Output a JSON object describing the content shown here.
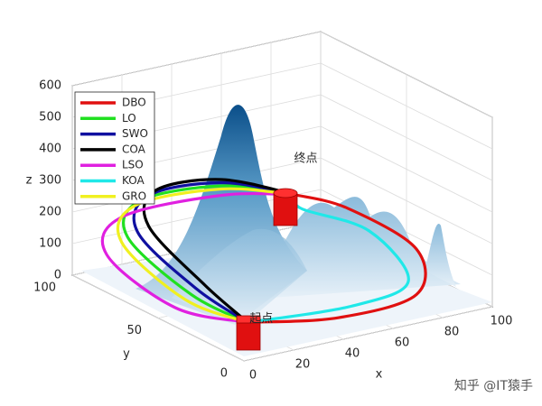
{
  "chart_data": {
    "type": "line3d",
    "xlabel": "x",
    "ylabel": "y",
    "zlabel": "z",
    "xlim": [
      0,
      100
    ],
    "ylim": [
      0,
      100
    ],
    "zlim": [
      0,
      600
    ],
    "xticks": [
      0,
      20,
      40,
      60,
      80,
      100
    ],
    "yticks": [
      0,
      50,
      100
    ],
    "zticks": [
      0,
      100,
      200,
      300,
      400,
      500,
      600
    ],
    "grid": true,
    "legend": "upper left",
    "annotations": [
      "起点",
      "终点"
    ],
    "watermark": "知乎 @IT猿手",
    "series": [
      {
        "name": "DBO",
        "color": "#e01010",
        "x": [
          5,
          40,
          75,
          97,
          97,
          90
        ],
        "y": [
          5,
          3,
          8,
          40,
          80,
          100
        ],
        "z": [
          100,
          60,
          60,
          80,
          100,
          100
        ]
      },
      {
        "name": "LO",
        "color": "#20e020",
        "x": [
          5,
          3,
          5,
          25,
          60,
          90
        ],
        "y": [
          5,
          35,
          75,
          97,
          100,
          100
        ],
        "z": [
          100,
          110,
          180,
          200,
          180,
          100
        ]
      },
      {
        "name": "SWO",
        "color": "#1010a0",
        "x": [
          5,
          4,
          7,
          28,
          60,
          90
        ],
        "y": [
          5,
          33,
          72,
          96,
          100,
          100
        ],
        "z": [
          100,
          130,
          200,
          215,
          190,
          100
        ]
      },
      {
        "name": "COA",
        "color": "#000000",
        "x": [
          5,
          5,
          10,
          30,
          60,
          90
        ],
        "y": [
          5,
          30,
          70,
          95,
          100,
          100
        ],
        "z": [
          100,
          150,
          220,
          230,
          200,
          100
        ]
      },
      {
        "name": "LSO",
        "color": "#e020e0",
        "x": [
          5,
          0,
          0,
          20,
          60,
          90
        ],
        "y": [
          5,
          40,
          80,
          100,
          100,
          100
        ],
        "z": [
          100,
          60,
          120,
          150,
          150,
          100
        ]
      },
      {
        "name": "KOA",
        "color": "#20e8e8",
        "x": [
          5,
          50,
          80,
          85,
          75,
          90
        ],
        "y": [
          5,
          10,
          20,
          50,
          75,
          100
        ],
        "z": [
          100,
          60,
          60,
          130,
          150,
          100
        ]
      },
      {
        "name": "GRO",
        "color": "#f0f020",
        "x": [
          5,
          2,
          4,
          24,
          60,
          90
        ],
        "y": [
          5,
          37,
          77,
          98,
          100,
          100
        ],
        "z": [
          100,
          90,
          160,
          185,
          170,
          100
        ]
      }
    ]
  }
}
